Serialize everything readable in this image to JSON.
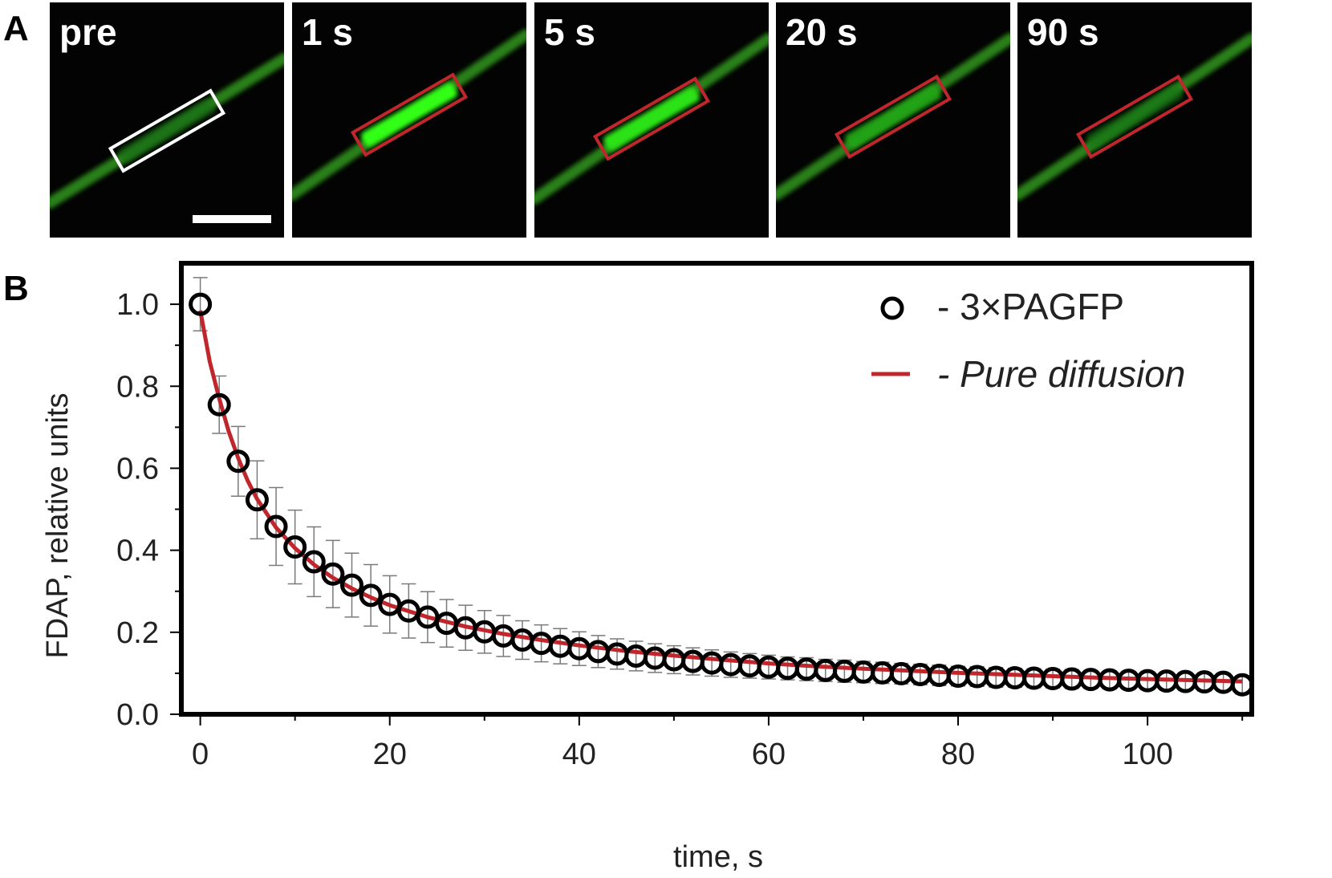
{
  "panel_a": {
    "letter": "A",
    "frames": [
      {
        "label": "pre",
        "roi_color": "#ffffff",
        "fill_level": 0.25
      },
      {
        "label": "1 s",
        "roi_color": "#c0272d",
        "fill_level": 1.0
      },
      {
        "label": "5 s",
        "roi_color": "#c0272d",
        "fill_level": 0.85
      },
      {
        "label": "20 s",
        "roi_color": "#c0272d",
        "fill_level": 0.55
      },
      {
        "label": "90 s",
        "roi_color": "#c0272d",
        "fill_level": 0.3
      }
    ]
  },
  "panel_b": {
    "letter": "B"
  },
  "chart_data": {
    "type": "scatter",
    "xlabel": "time, s",
    "ylabel": "FDAP, relative units",
    "xlim": [
      -2,
      111
    ],
    "ylim": [
      0.0,
      1.1
    ],
    "xticks": [
      "0",
      "20",
      "40",
      "60",
      "80",
      "100"
    ],
    "yticks": [
      "0.0",
      "0.2",
      "0.4",
      "0.6",
      "0.8",
      "1.0"
    ],
    "legend_position": "top-right",
    "series": [
      {
        "name": "- 3×PAGFP",
        "style": "open-circles-with-error-bars",
        "color": "#000000",
        "x": [
          0,
          2,
          4,
          6,
          8,
          10,
          12,
          14,
          16,
          18,
          20,
          22,
          24,
          26,
          28,
          30,
          32,
          34,
          36,
          38,
          40,
          42,
          44,
          46,
          48,
          50,
          52,
          54,
          56,
          58,
          60,
          62,
          64,
          66,
          68,
          70,
          72,
          74,
          76,
          78,
          80,
          82,
          84,
          86,
          88,
          90,
          92,
          94,
          96,
          98,
          100,
          102,
          104,
          106,
          108,
          110
        ],
        "y": [
          1.0,
          0.755,
          0.617,
          0.523,
          0.458,
          0.408,
          0.372,
          0.342,
          0.315,
          0.29,
          0.268,
          0.252,
          0.237,
          0.222,
          0.211,
          0.201,
          0.191,
          0.181,
          0.173,
          0.166,
          0.16,
          0.153,
          0.147,
          0.142,
          0.137,
          0.133,
          0.129,
          0.125,
          0.121,
          0.118,
          0.115,
          0.112,
          0.11,
          0.107,
          0.105,
          0.103,
          0.101,
          0.099,
          0.097,
          0.095,
          0.093,
          0.092,
          0.09,
          0.089,
          0.088,
          0.087,
          0.086,
          0.085,
          0.084,
          0.083,
          0.082,
          0.081,
          0.08,
          0.079,
          0.078,
          0.072
        ],
        "err": [
          0.065,
          0.07,
          0.085,
          0.095,
          0.095,
          0.09,
          0.085,
          0.082,
          0.078,
          0.075,
          0.07,
          0.066,
          0.062,
          0.058,
          0.055,
          0.052,
          0.05,
          0.047,
          0.045,
          0.043,
          0.041,
          0.039,
          0.037,
          0.036,
          0.035,
          0.034,
          0.033,
          0.032,
          0.031,
          0.03,
          0.029,
          0.028,
          0.028,
          0.027,
          0.027,
          0.026,
          0.026,
          0.025,
          0.025,
          0.025,
          0.024,
          0.024,
          0.024,
          0.023,
          0.023,
          0.023,
          0.023,
          0.022,
          0.022,
          0.022,
          0.022,
          0.022,
          0.022,
          0.022,
          0.022,
          0.022
        ]
      },
      {
        "name": "- Pure diffusion",
        "style": "line",
        "color": "#c0272d",
        "x": [
          0,
          1,
          2,
          3,
          4,
          5,
          6,
          8,
          10,
          12,
          14,
          16,
          18,
          20,
          24,
          28,
          32,
          36,
          40,
          45,
          50,
          55,
          60,
          65,
          70,
          75,
          80,
          85,
          90,
          95,
          100,
          105,
          110
        ],
        "y": [
          0.985,
          0.86,
          0.77,
          0.69,
          0.625,
          0.57,
          0.525,
          0.455,
          0.405,
          0.365,
          0.333,
          0.307,
          0.285,
          0.266,
          0.237,
          0.214,
          0.196,
          0.181,
          0.168,
          0.154,
          0.143,
          0.133,
          0.124,
          0.117,
          0.111,
          0.106,
          0.101,
          0.097,
          0.093,
          0.089,
          0.086,
          0.083,
          0.08
        ]
      }
    ]
  }
}
